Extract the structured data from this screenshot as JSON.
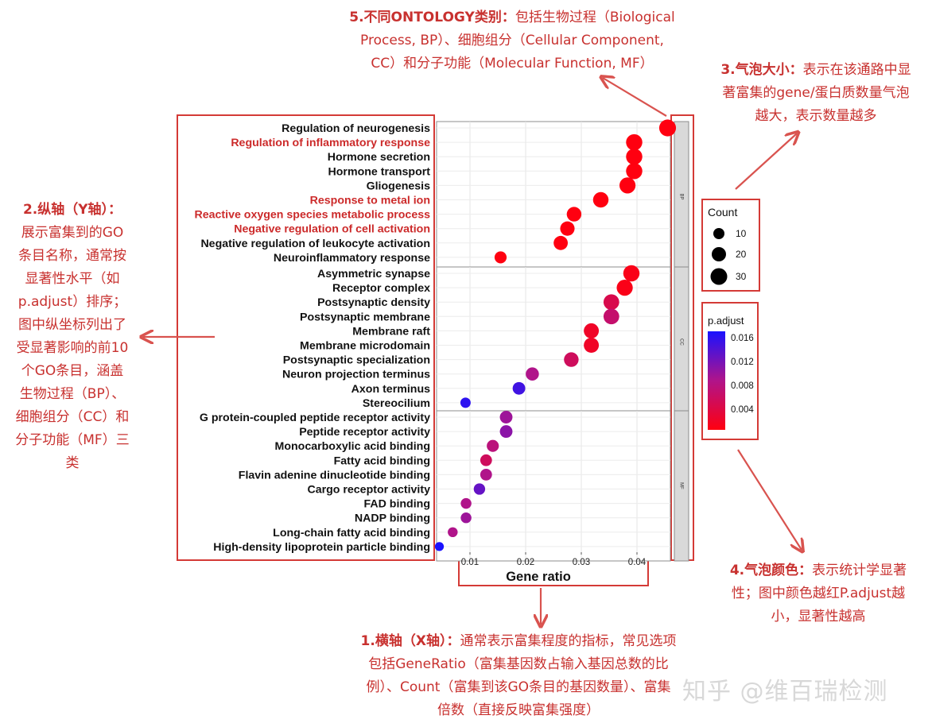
{
  "annotations": {
    "ann5": {
      "head": "5.不同ONTOLOGY类别：",
      "lines": [
        "包括生物过程（Biological",
        "Process, BP）、细胞组分（Cellular Component,",
        "CC）和分子功能（Molecular Function, MF）"
      ]
    },
    "ann3": {
      "head": "3.气泡大小：",
      "lines": [
        "表示在该通路中显",
        "著富集的gene/蛋白质数量气泡",
        "越大，表示数量越多"
      ]
    },
    "ann2": {
      "head": "2.纵轴（Y轴）：",
      "lines": [
        "展示富集到的GO",
        "条目名称，通常按",
        "显著性水平（如",
        "p.adjust）排序；",
        "图中纵坐标列出了",
        "受显著影响的前10",
        "个GO条目，涵盖",
        "生物过程（BP）、",
        "细胞组分（CC）和",
        "分子功能（MF）三",
        "类"
      ]
    },
    "ann4": {
      "head": "4.气泡颜色：",
      "lines": [
        "表示统计学显著",
        "性；图中颜色越红P.adjust越",
        "小，显著性越高"
      ]
    },
    "ann1": {
      "head": "1.横轴（X轴）：",
      "lines": [
        "通常表示富集程度的指标，常见选项",
        "包括GeneRatio（富集基因数占输入基因总数的比",
        "例）、Count（富集到该GO条目的基因数量）、富集",
        "倍数（直接反映富集强度）"
      ]
    }
  },
  "watermark": "知乎 @维百瑞检测",
  "chart_data": {
    "type": "scatter",
    "xlabel": "Gene ratio",
    "xticks": [
      "0.01",
      "0.02",
      "0.03",
      "0.04"
    ],
    "xlim": [
      0.004,
      0.046
    ],
    "size_legend": {
      "title": "Count",
      "values": [
        10,
        20,
        30
      ]
    },
    "color_legend": {
      "title": "p.adjust",
      "ticks": [
        "0.016",
        "0.012",
        "0.008",
        "0.004"
      ],
      "low_color": "#ff0000",
      "high_color": "#1a12ff"
    },
    "highlight_color": "#cc2a2a",
    "panels": [
      {
        "strip": "BP",
        "terms": [
          {
            "label": "Regulation of neurogenesis",
            "x": 0.0455,
            "count": 33,
            "p": 0.0002,
            "highlight": false
          },
          {
            "label": "Regulation of inflammatory response",
            "x": 0.0395,
            "count": 30,
            "p": 0.0003,
            "highlight": true
          },
          {
            "label": "Hormone secretion",
            "x": 0.0395,
            "count": 30,
            "p": 0.0003,
            "highlight": false
          },
          {
            "label": "Hormone transport",
            "x": 0.0395,
            "count": 30,
            "p": 0.0003,
            "highlight": false
          },
          {
            "label": "Gliogenesis",
            "x": 0.0383,
            "count": 29,
            "p": 0.0003,
            "highlight": false
          },
          {
            "label": "Response to metal ion",
            "x": 0.0335,
            "count": 26,
            "p": 0.0004,
            "highlight": true
          },
          {
            "label": "Reactive oxygen species metabolic process",
            "x": 0.0287,
            "count": 22,
            "p": 0.0004,
            "highlight": true
          },
          {
            "label": "Negative regulation of cell activation",
            "x": 0.0275,
            "count": 21,
            "p": 0.0005,
            "highlight": true
          },
          {
            "label": "Negative regulation of leukocyte activation",
            "x": 0.0263,
            "count": 20,
            "p": 0.0005,
            "highlight": false
          },
          {
            "label": "Neuroinflammatory response",
            "x": 0.0155,
            "count": 12,
            "p": 0.001,
            "highlight": false
          }
        ]
      },
      {
        "strip": "CC",
        "terms": [
          {
            "label": "Asymmetric synapse",
            "x": 0.039,
            "count": 30,
            "p": 0.0015,
            "highlight": false
          },
          {
            "label": "Receptor complex",
            "x": 0.0378,
            "count": 29,
            "p": 0.0015,
            "highlight": false
          },
          {
            "label": "Postsynaptic density",
            "x": 0.0354,
            "count": 27,
            "p": 0.005,
            "highlight": false
          },
          {
            "label": "Postsynaptic membrane",
            "x": 0.0354,
            "count": 27,
            "p": 0.007,
            "highlight": false
          },
          {
            "label": "Membrane raft",
            "x": 0.0318,
            "count": 24,
            "p": 0.0025,
            "highlight": false
          },
          {
            "label": "Membrane microdomain",
            "x": 0.0318,
            "count": 24,
            "p": 0.0025,
            "highlight": false
          },
          {
            "label": "Postsynaptic specialization",
            "x": 0.0282,
            "count": 22,
            "p": 0.006,
            "highlight": false
          },
          {
            "label": "Neuron projection terminus",
            "x": 0.0212,
            "count": 16,
            "p": 0.009,
            "highlight": false
          },
          {
            "label": "Axon terminus",
            "x": 0.0188,
            "count": 14,
            "p": 0.015,
            "highlight": false
          },
          {
            "label": "Stereocilium",
            "x": 0.0092,
            "count": 7,
            "p": 0.016,
            "highlight": false
          }
        ]
      },
      {
        "strip": "MF",
        "terms": [
          {
            "label": "G protein-coupled peptide receptor activity",
            "x": 0.0165,
            "count": 14,
            "p": 0.01,
            "highlight": false
          },
          {
            "label": "Peptide receptor activity",
            "x": 0.0165,
            "count": 14,
            "p": 0.011,
            "highlight": false
          },
          {
            "label": "Monocarboxylic acid binding",
            "x": 0.0141,
            "count": 12,
            "p": 0.008,
            "highlight": false
          },
          {
            "label": "Fatty acid binding",
            "x": 0.0129,
            "count": 11,
            "p": 0.006,
            "highlight": false
          },
          {
            "label": "Flavin adenine dinucleotide binding",
            "x": 0.0129,
            "count": 11,
            "p": 0.009,
            "highlight": false
          },
          {
            "label": "Cargo receptor activity",
            "x": 0.0117,
            "count": 10,
            "p": 0.013,
            "highlight": false
          },
          {
            "label": "FAD binding",
            "x": 0.0093,
            "count": 8,
            "p": 0.009,
            "highlight": false
          },
          {
            "label": "NADP binding",
            "x": 0.0093,
            "count": 8,
            "p": 0.01,
            "highlight": false
          },
          {
            "label": "Long-chain fatty acid binding",
            "x": 0.0069,
            "count": 6,
            "p": 0.009,
            "highlight": false
          },
          {
            "label": "High-density lipoprotein particle binding",
            "x": 0.0045,
            "count": 4,
            "p": 0.017,
            "highlight": false
          }
        ]
      }
    ]
  }
}
